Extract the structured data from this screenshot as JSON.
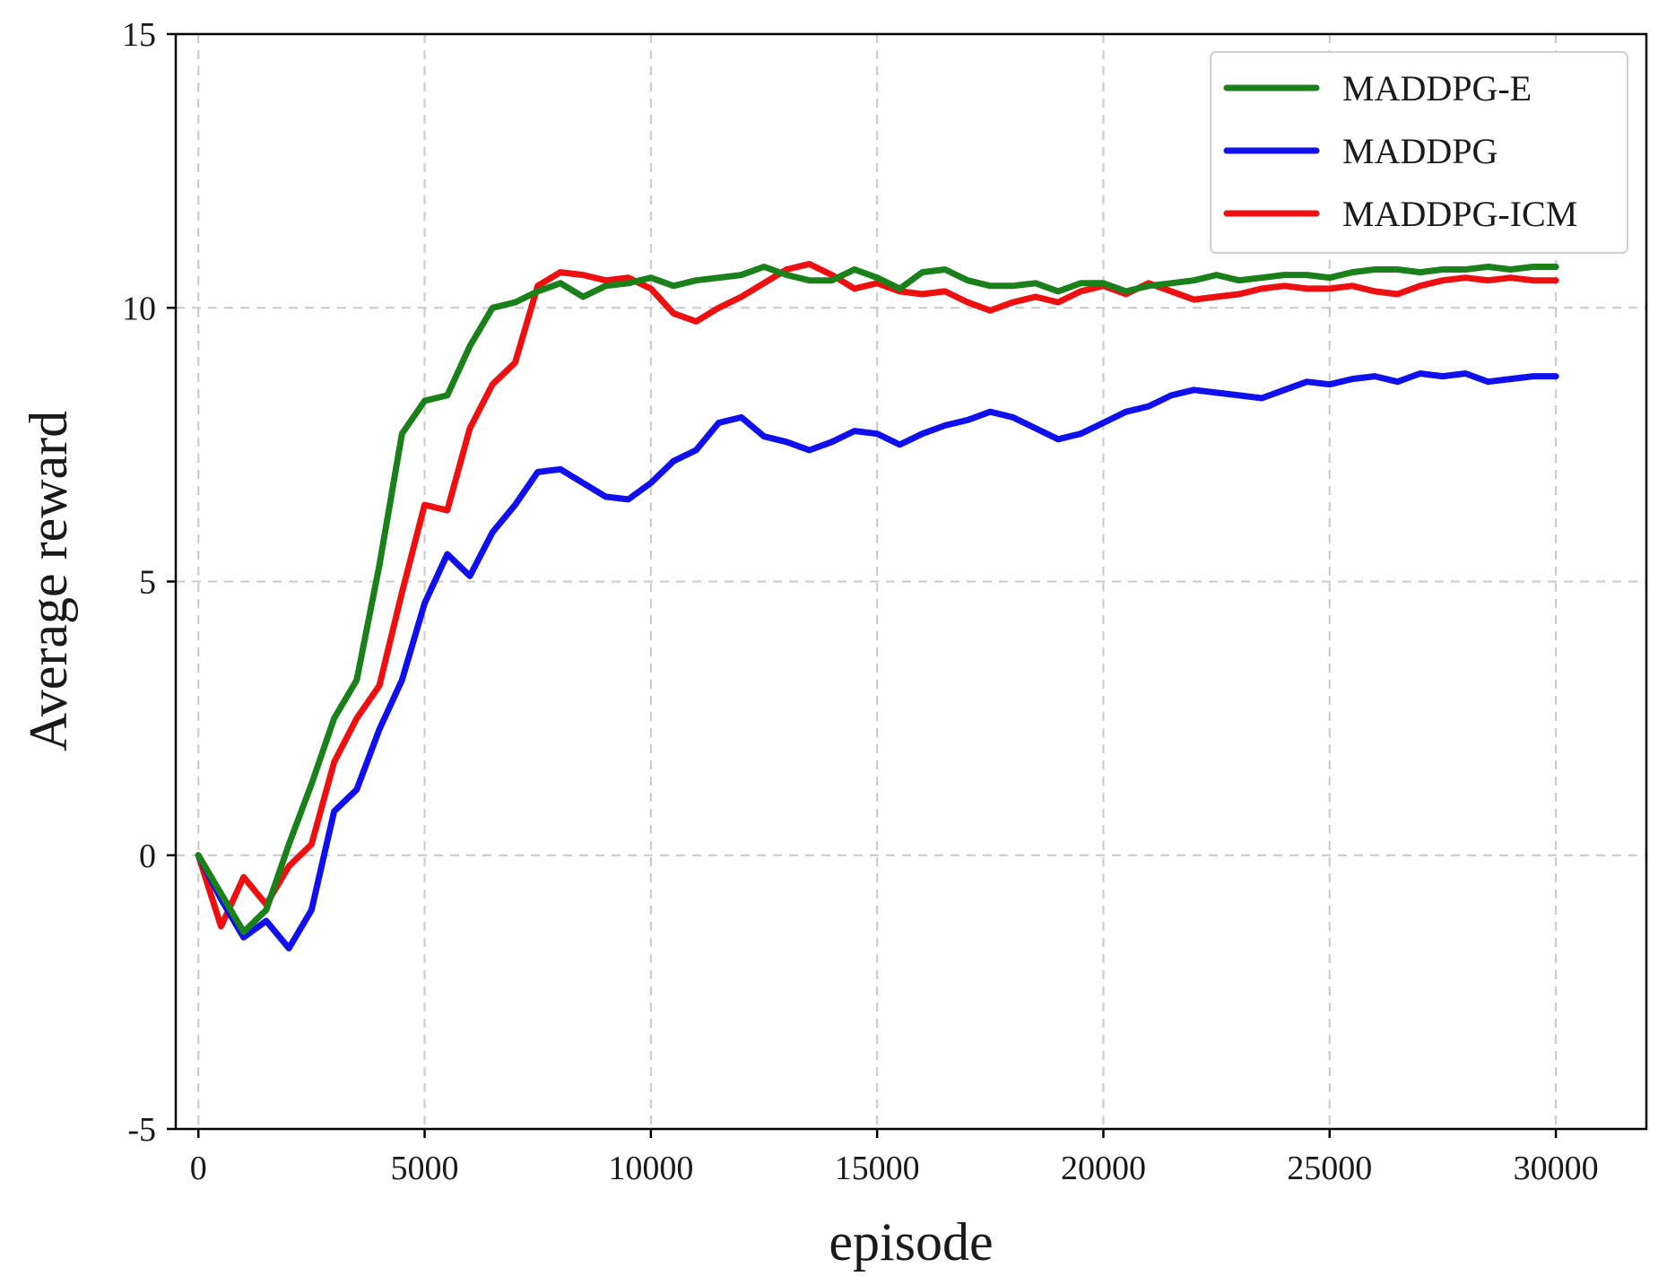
{
  "chart_data": {
    "type": "line",
    "title": "",
    "xlabel": "episode",
    "ylabel": "Average reward",
    "xlim": [
      -500,
      32000
    ],
    "ylim": [
      -5,
      15
    ],
    "xticks": [
      0,
      5000,
      10000,
      15000,
      20000,
      25000,
      30000
    ],
    "yticks": [
      -5,
      0,
      5,
      10,
      15
    ],
    "grid": true,
    "legend_position": "top-right",
    "x": [
      0,
      500,
      1000,
      1500,
      2000,
      2500,
      3000,
      3500,
      4000,
      4500,
      5000,
      5500,
      6000,
      6500,
      7000,
      7500,
      8000,
      8500,
      9000,
      9500,
      10000,
      10500,
      11000,
      11500,
      12000,
      12500,
      13000,
      13500,
      14000,
      14500,
      15000,
      15500,
      16000,
      16500,
      17000,
      17500,
      18000,
      18500,
      19000,
      19500,
      20000,
      20500,
      21000,
      21500,
      22000,
      22500,
      23000,
      23500,
      24000,
      24500,
      25000,
      25500,
      26000,
      26500,
      27000,
      27500,
      28000,
      28500,
      29000,
      29500,
      30000
    ],
    "series": [
      {
        "name": "MADDPG-E",
        "color": "#1a801a",
        "values": [
          0.0,
          -0.7,
          -1.4,
          -1.0,
          0.2,
          1.3,
          2.5,
          3.2,
          5.3,
          7.7,
          8.3,
          8.4,
          9.3,
          10.0,
          10.1,
          10.3,
          10.45,
          10.2,
          10.4,
          10.45,
          10.55,
          10.4,
          10.5,
          10.55,
          10.6,
          10.75,
          10.6,
          10.5,
          10.5,
          10.7,
          10.55,
          10.35,
          10.65,
          10.7,
          10.5,
          10.4,
          10.4,
          10.45,
          10.3,
          10.45,
          10.45,
          10.3,
          10.4,
          10.45,
          10.5,
          10.6,
          10.5,
          10.55,
          10.6,
          10.6,
          10.55,
          10.65,
          10.7,
          10.7,
          10.65,
          10.7,
          10.7,
          10.75,
          10.7,
          10.75,
          10.75
        ]
      },
      {
        "name": "MADDPG",
        "color": "#1010ee",
        "values": [
          0.0,
          -0.8,
          -1.5,
          -1.2,
          -1.7,
          -1.0,
          0.8,
          1.2,
          2.3,
          3.2,
          4.6,
          5.5,
          5.1,
          5.9,
          6.4,
          7.0,
          7.05,
          6.8,
          6.55,
          6.5,
          6.8,
          7.2,
          7.4,
          7.9,
          8.0,
          7.65,
          7.55,
          7.4,
          7.55,
          7.75,
          7.7,
          7.5,
          7.7,
          7.85,
          7.95,
          8.1,
          8.0,
          7.8,
          7.6,
          7.7,
          7.9,
          8.1,
          8.2,
          8.4,
          8.5,
          8.45,
          8.4,
          8.35,
          8.5,
          8.65,
          8.6,
          8.7,
          8.75,
          8.65,
          8.8,
          8.75,
          8.8,
          8.65,
          8.7,
          8.75,
          8.75
        ]
      },
      {
        "name": "MADDPG-ICM",
        "color": "#ee1010",
        "values": [
          0.0,
          -1.3,
          -0.4,
          -0.9,
          -0.2,
          0.2,
          1.7,
          2.5,
          3.1,
          4.8,
          6.4,
          6.3,
          7.8,
          8.6,
          9.0,
          10.4,
          10.65,
          10.6,
          10.5,
          10.55,
          10.35,
          9.9,
          9.75,
          10.0,
          10.2,
          10.45,
          10.7,
          10.8,
          10.6,
          10.35,
          10.45,
          10.3,
          10.25,
          10.3,
          10.1,
          9.95,
          10.1,
          10.2,
          10.1,
          10.3,
          10.4,
          10.25,
          10.45,
          10.3,
          10.15,
          10.2,
          10.25,
          10.35,
          10.4,
          10.35,
          10.35,
          10.4,
          10.3,
          10.25,
          10.4,
          10.5,
          10.55,
          10.5,
          10.55,
          10.5,
          10.5
        ]
      }
    ]
  }
}
